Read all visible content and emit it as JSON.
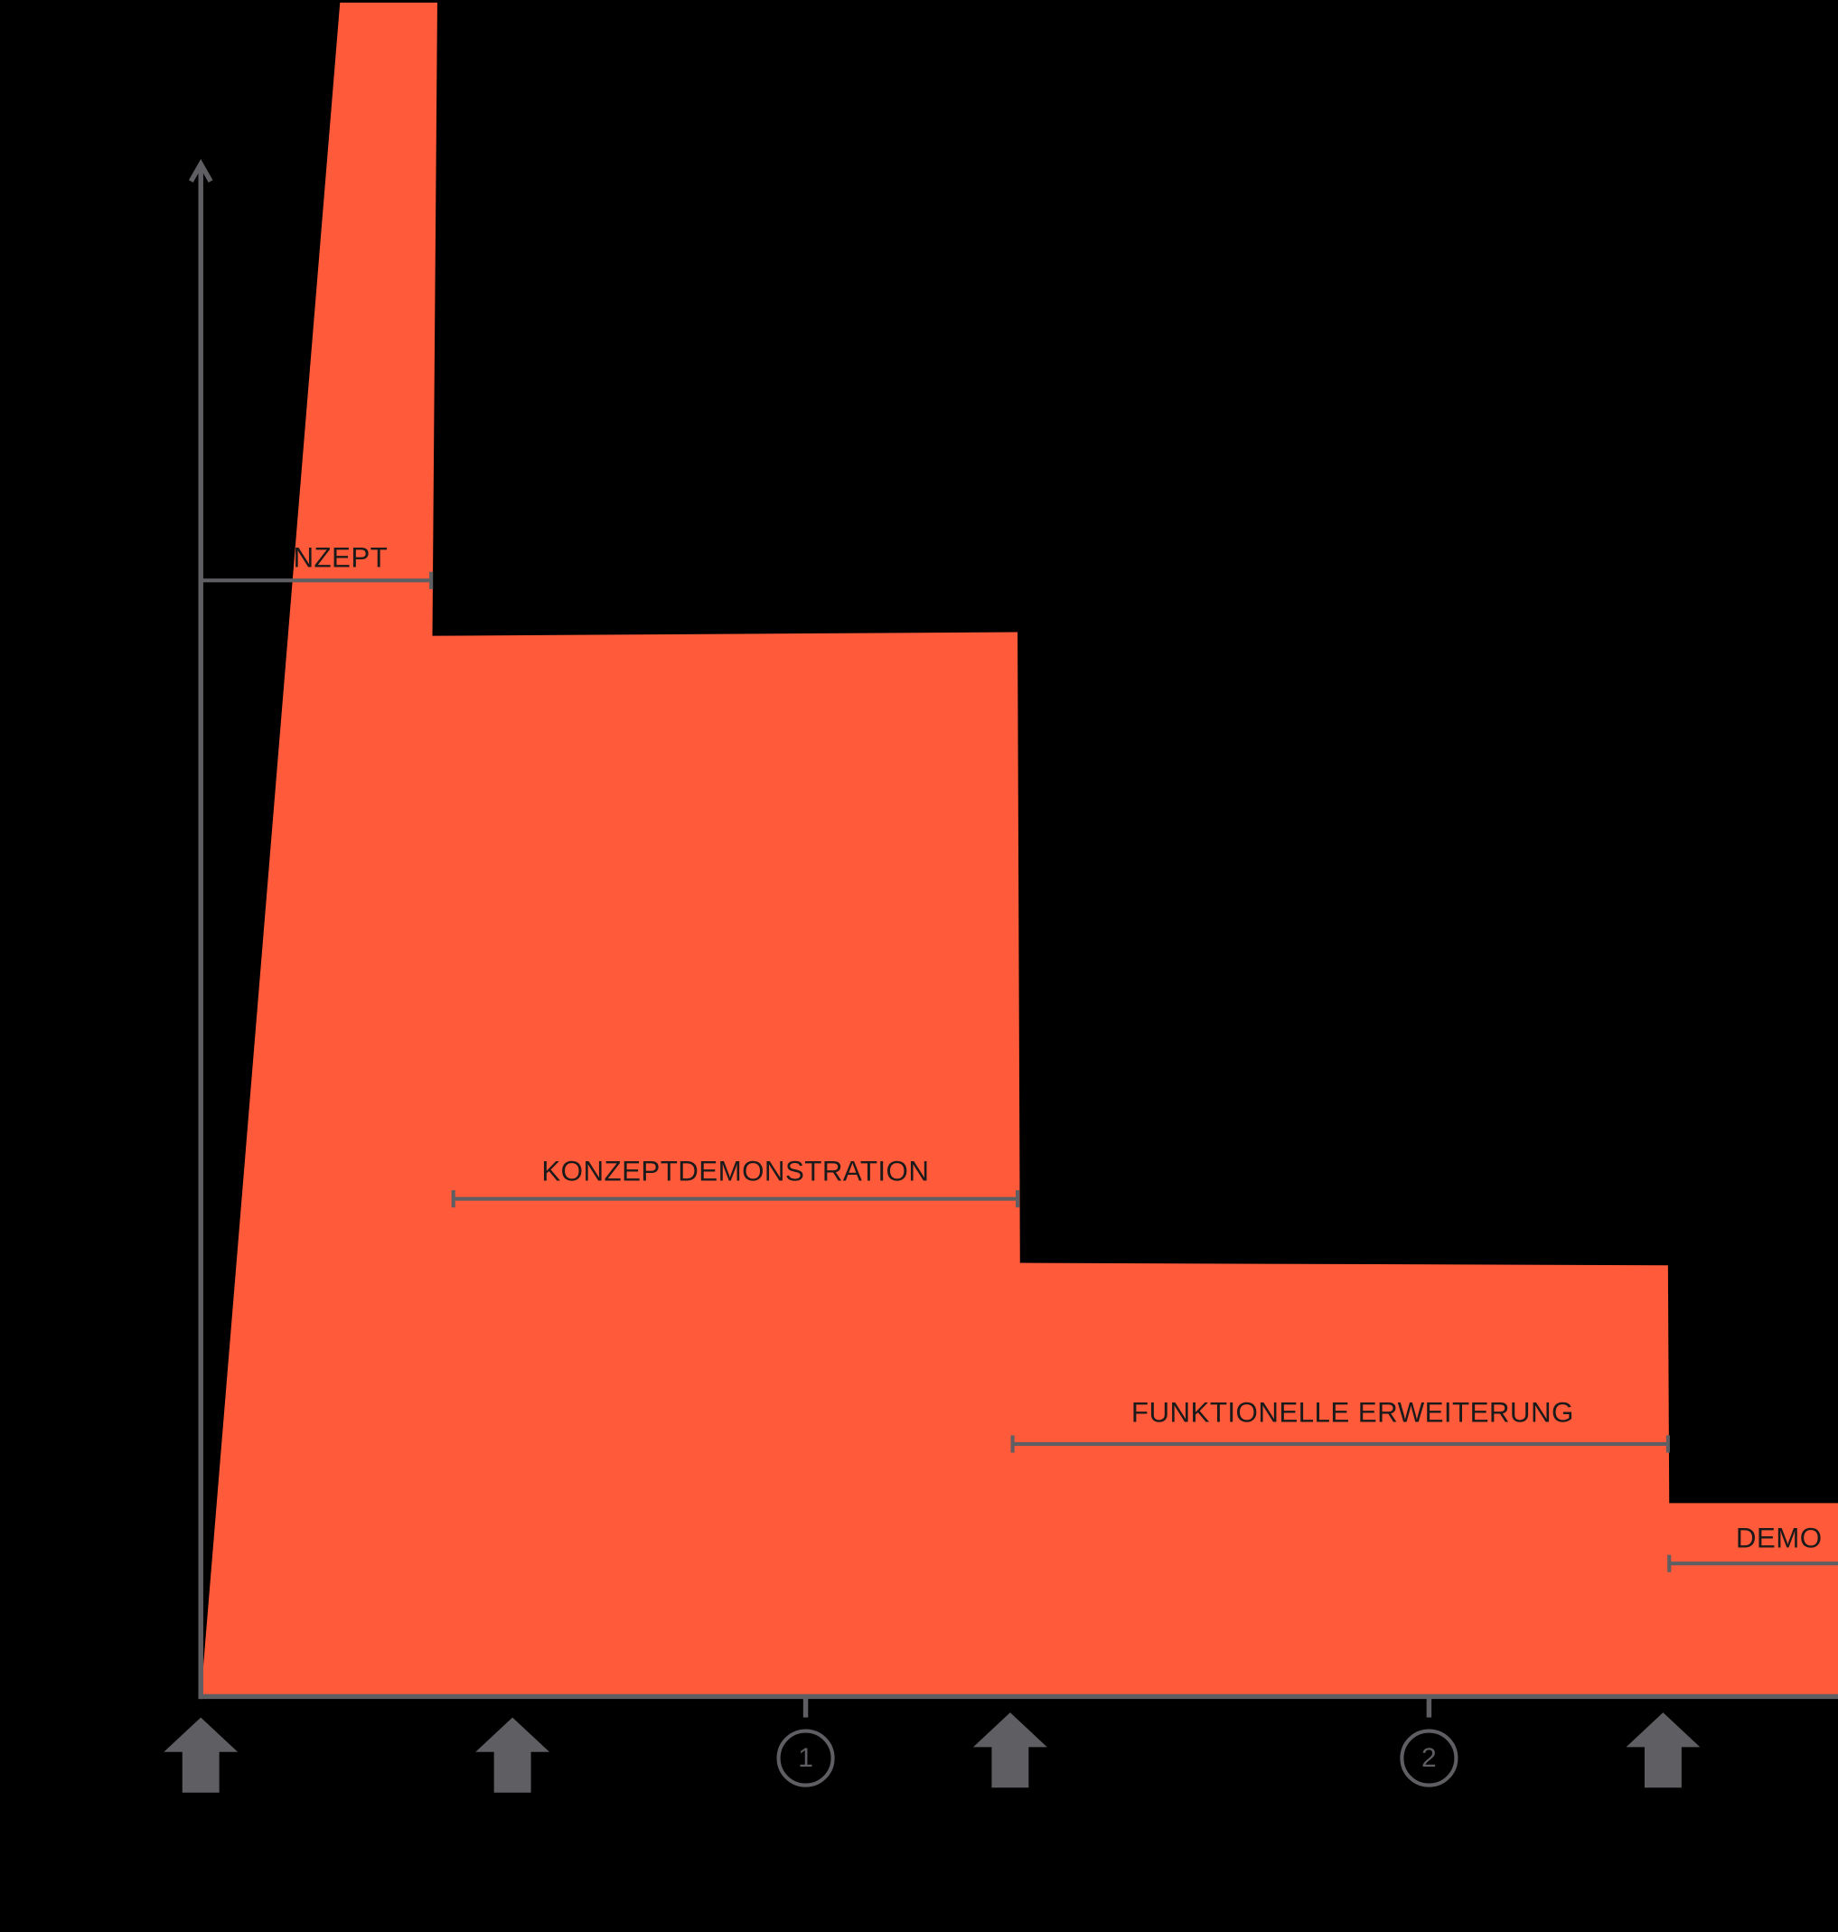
{
  "phases": [
    {
      "label": "NZEPT"
    },
    {
      "label": "KONZEPTDEMONSTRATION"
    },
    {
      "label": "FUNKTIONELLE ERWEITERUNG"
    },
    {
      "label": "DEMO"
    }
  ],
  "milestones": [
    "1",
    "2"
  ]
}
